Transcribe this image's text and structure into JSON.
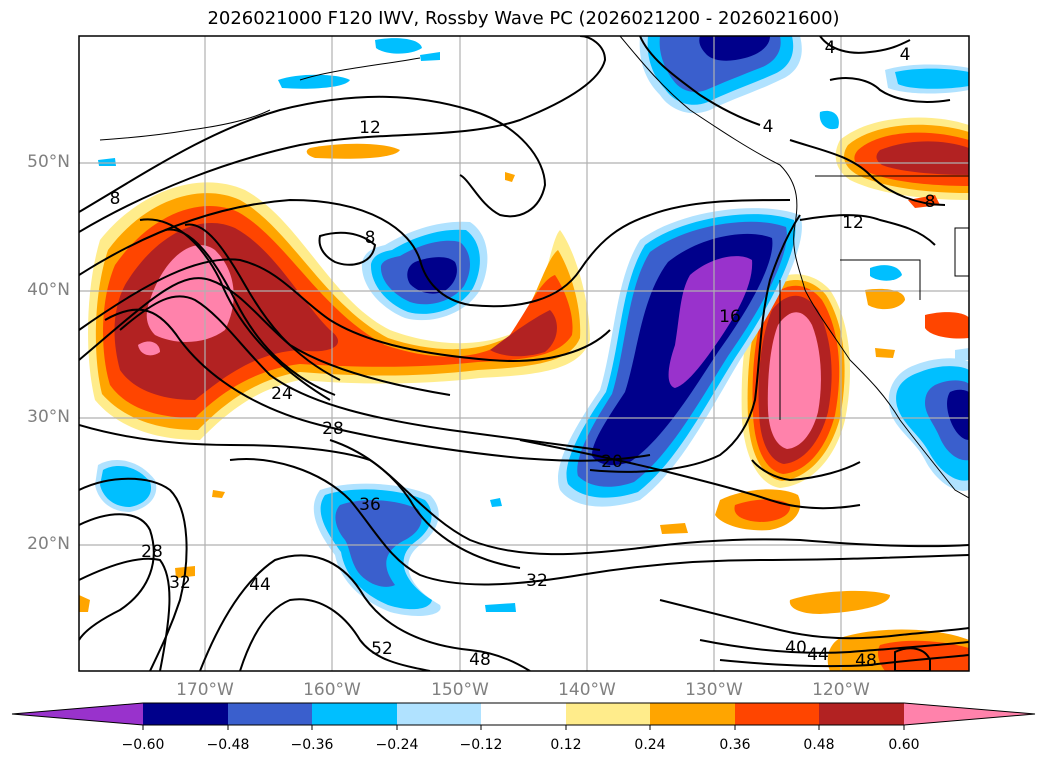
{
  "title": "2026021000 F120 IWV, Rossby Wave PC (2026021200 - 2026021600)",
  "latitude_labels": [
    "50°N",
    "40°N",
    "30°N",
    "20°N"
  ],
  "longitude_labels": [
    "170°W",
    "160°W",
    "150°W",
    "140°W",
    "130°W",
    "120°W"
  ],
  "colorbar": {
    "ticks": [
      "−0.60",
      "−0.48",
      "−0.36",
      "−0.24",
      "−0.12",
      "0.12",
      "0.24",
      "0.36",
      "0.48",
      "0.60"
    ],
    "colors": [
      "#9932cc",
      "#00008b",
      "#3a5fcd",
      "#00bfff",
      "#b0e2ff",
      "#ffffff",
      "#ffec8b",
      "#ffa500",
      "#ff4500",
      "#b22222",
      "#ff82ab"
    ]
  },
  "contour_labels": [
    "4",
    "4",
    "4",
    "12",
    "8",
    "8",
    "8",
    "12",
    "16",
    "24",
    "28",
    "20",
    "36",
    "28",
    "32",
    "32",
    "44",
    "52",
    "48",
    "40",
    "44",
    "48"
  ],
  "colors": {
    "grid": "#b0b0b0",
    "frame": "#000000",
    "contour": "#000000"
  }
}
